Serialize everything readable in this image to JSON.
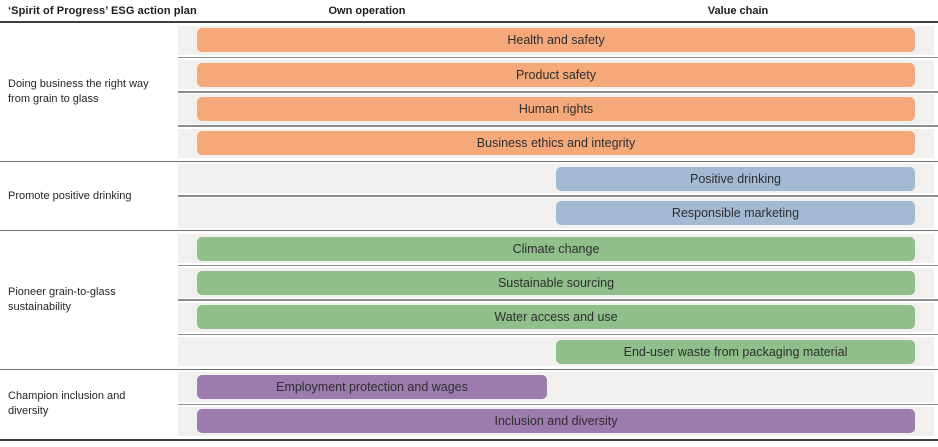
{
  "header": {
    "title": "‘Spirit of Progress’ ESG action plan",
    "col_own": "Own operation",
    "col_value": "Value chain"
  },
  "colors": {
    "orange": "#F5A97B",
    "blue": "#A4BAD3",
    "green": "#90BF8C",
    "purple": "#9C7BAE",
    "row_track": "#F1F0EE",
    "separator": "#8D8D8D",
    "frame_line": "#3F3F3F"
  },
  "chart_data": {
    "type": "table",
    "title": "‘Spirit of Progress’ ESG action plan",
    "columns": [
      "Own operation",
      "Value chain"
    ],
    "legend_position": "none",
    "grid": "row-separators",
    "groups": [
      {
        "label": "Doing business the right way from grain to glass",
        "color_key": "orange",
        "topics": [
          {
            "label": "Health and safety",
            "own_operation": true,
            "value_chain": true
          },
          {
            "label": "Product safety",
            "own_operation": true,
            "value_chain": true
          },
          {
            "label": "Human rights",
            "own_operation": true,
            "value_chain": true
          },
          {
            "label": "Business ethics and integrity",
            "own_operation": true,
            "value_chain": true
          }
        ]
      },
      {
        "label": "Promote positive drinking",
        "color_key": "blue",
        "topics": [
          {
            "label": "Positive drinking",
            "own_operation": false,
            "value_chain": true
          },
          {
            "label": "Responsible marketing",
            "own_operation": false,
            "value_chain": true
          }
        ]
      },
      {
        "label": "Pioneer grain-to-glass sustainability",
        "color_key": "green",
        "topics": [
          {
            "label": "Climate change",
            "own_operation": true,
            "value_chain": true
          },
          {
            "label": "Sustainable sourcing",
            "own_operation": true,
            "value_chain": true
          },
          {
            "label": "Water access and use",
            "own_operation": true,
            "value_chain": true
          },
          {
            "label": "End-user waste from packaging material",
            "own_operation": false,
            "value_chain": true
          }
        ]
      },
      {
        "label": "Champion inclusion and diversity",
        "color_key": "purple",
        "topics": [
          {
            "label": "Employment protection and wages",
            "own_operation": true,
            "value_chain": false
          },
          {
            "label": "Inclusion and diversity",
            "own_operation": true,
            "value_chain": true
          }
        ]
      }
    ]
  }
}
